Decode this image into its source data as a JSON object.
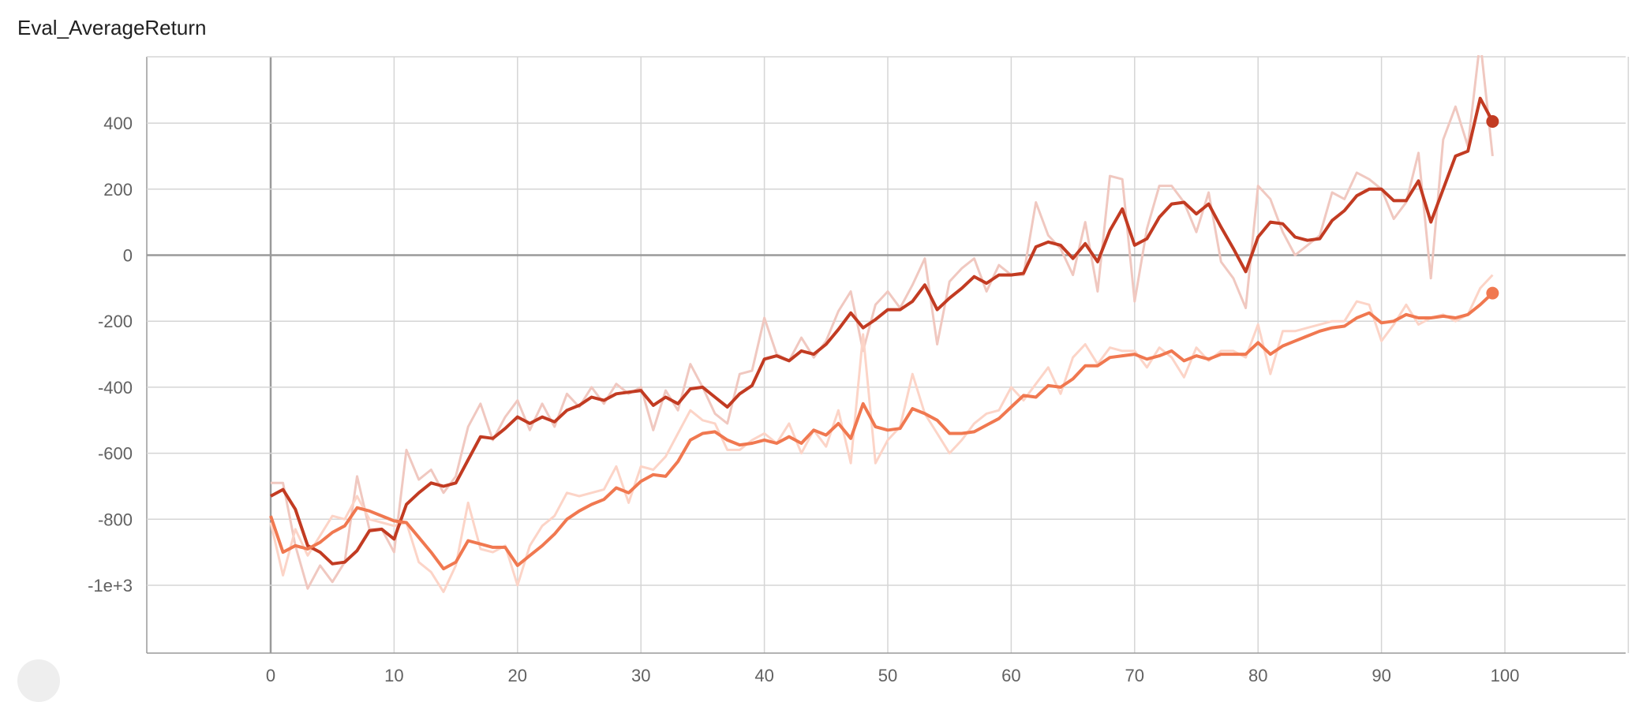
{
  "chart_data": {
    "type": "line",
    "title": "Eval_AverageReturn",
    "xlabel": "",
    "ylabel": "",
    "xlim": [
      -10,
      110
    ],
    "ylim": [
      -1200,
      600
    ],
    "x_ticks": [
      0,
      10,
      20,
      30,
      40,
      50,
      60,
      70,
      80,
      90,
      100
    ],
    "x_tick_labels": [
      "0",
      "10",
      "20",
      "30",
      "40",
      "50",
      "60",
      "70",
      "80",
      "90",
      "100"
    ],
    "y_ticks": [
      400,
      200,
      0,
      -200,
      -400,
      -600,
      -800,
      -1000
    ],
    "y_tick_labels": [
      "400",
      "200",
      "0",
      "-200",
      "-400",
      "-600",
      "-800",
      "-1e+3"
    ],
    "grid": true,
    "legend": "none",
    "smoothed": true,
    "series": [
      {
        "color": "#c23b22",
        "raw_color": "#f0c8c0",
        "x": [
          0,
          1,
          2,
          3,
          4,
          5,
          6,
          7,
          8,
          9,
          10,
          11,
          12,
          13,
          14,
          15,
          16,
          17,
          18,
          19,
          20,
          21,
          22,
          23,
          24,
          25,
          26,
          27,
          28,
          29,
          30,
          31,
          32,
          33,
          34,
          35,
          36,
          37,
          38,
          39,
          40,
          41,
          42,
          43,
          44,
          45,
          46,
          47,
          48,
          49,
          50,
          51,
          52,
          53,
          54,
          55,
          56,
          57,
          58,
          59,
          60,
          61,
          62,
          63,
          64,
          65,
          66,
          67,
          68,
          69,
          70,
          71,
          72,
          73,
          74,
          75,
          76,
          77,
          78,
          79,
          80,
          81,
          82,
          83,
          84,
          85,
          86,
          87,
          88,
          89,
          90,
          91,
          92,
          93,
          94,
          95,
          96,
          97,
          98,
          99
        ],
        "raw": [
          -690,
          -690,
          -880,
          -1010,
          -940,
          -990,
          -930,
          -670,
          -830,
          -830,
          -900,
          -590,
          -680,
          -650,
          -720,
          -670,
          -520,
          -450,
          -560,
          -490,
          -440,
          -530,
          -450,
          -520,
          -420,
          -460,
          -400,
          -450,
          -390,
          -420,
          -400,
          -530,
          -410,
          -470,
          -330,
          -400,
          -480,
          -510,
          -360,
          -350,
          -190,
          -300,
          -320,
          -250,
          -310,
          -260,
          -170,
          -110,
          -290,
          -150,
          -110,
          -160,
          -90,
          -10,
          -270,
          -80,
          -40,
          -10,
          -110,
          -30,
          -60,
          -60,
          160,
          60,
          20,
          -60,
          100,
          -110,
          240,
          230,
          -140,
          80,
          210,
          210,
          160,
          70,
          190,
          -20,
          -70,
          -160,
          210,
          170,
          70,
          0,
          30,
          60,
          190,
          170,
          250,
          230,
          200,
          110,
          160,
          310,
          -70,
          350,
          450,
          330,
          650,
          300
        ],
        "smoothed": [
          -730,
          -710,
          -770,
          -880,
          -900,
          -935,
          -930,
          -895,
          -835,
          -830,
          -860,
          -755,
          -720,
          -690,
          -700,
          -690,
          -620,
          -550,
          -555,
          -525,
          -490,
          -510,
          -490,
          -505,
          -470,
          -455,
          -430,
          -440,
          -420,
          -415,
          -410,
          -455,
          -430,
          -450,
          -405,
          -400,
          -430,
          -460,
          -420,
          -395,
          -315,
          -305,
          -320,
          -290,
          -300,
          -270,
          -225,
          -175,
          -220,
          -195,
          -165,
          -165,
          -140,
          -90,
          -165,
          -130,
          -100,
          -65,
          -85,
          -60,
          -60,
          -55,
          25,
          40,
          30,
          -10,
          35,
          -20,
          75,
          140,
          30,
          50,
          115,
          155,
          160,
          125,
          155,
          85,
          20,
          -50,
          55,
          100,
          95,
          55,
          45,
          50,
          105,
          135,
          180,
          200,
          200,
          165,
          165,
          225,
          100,
          200,
          300,
          315,
          475,
          405
        ]
      },
      {
        "color": "#f07850",
        "raw_color": "#fcd4c7",
        "x": [
          0,
          1,
          2,
          3,
          4,
          5,
          6,
          7,
          8,
          9,
          10,
          11,
          12,
          13,
          14,
          15,
          16,
          17,
          18,
          19,
          20,
          21,
          22,
          23,
          24,
          25,
          26,
          27,
          28,
          29,
          30,
          31,
          32,
          33,
          34,
          35,
          36,
          37,
          38,
          39,
          40,
          41,
          42,
          43,
          44,
          45,
          46,
          47,
          48,
          49,
          50,
          51,
          52,
          53,
          54,
          55,
          56,
          57,
          58,
          59,
          60,
          61,
          62,
          63,
          64,
          65,
          66,
          67,
          68,
          69,
          70,
          71,
          72,
          73,
          74,
          75,
          76,
          77,
          78,
          79,
          80,
          81,
          82,
          83,
          84,
          85,
          86,
          87,
          88,
          89,
          90,
          91,
          92,
          93,
          94,
          95,
          96,
          97,
          98,
          99
        ],
        "raw": [
          -810,
          -970,
          -830,
          -910,
          -850,
          -790,
          -800,
          -730,
          -800,
          -810,
          -820,
          -810,
          -930,
          -960,
          -1020,
          -940,
          -750,
          -890,
          -900,
          -880,
          -1000,
          -880,
          -820,
          -790,
          -720,
          -730,
          -720,
          -710,
          -640,
          -750,
          -640,
          -650,
          -610,
          -540,
          -470,
          -500,
          -510,
          -590,
          -590,
          -560,
          -540,
          -570,
          -510,
          -600,
          -530,
          -580,
          -470,
          -630,
          -240,
          -630,
          -560,
          -520,
          -360,
          -480,
          -540,
          -600,
          -560,
          -510,
          -480,
          -470,
          -400,
          -440,
          -390,
          -340,
          -420,
          -310,
          -270,
          -330,
          -280,
          -290,
          -290,
          -340,
          -280,
          -310,
          -370,
          -280,
          -320,
          -290,
          -290,
          -310,
          -210,
          -360,
          -230,
          -230,
          -220,
          -210,
          -200,
          -200,
          -140,
          -150,
          -260,
          -210,
          -150,
          -210,
          -190,
          -180,
          -200,
          -180,
          -100,
          -60
        ],
        "smoothed": [
          -790,
          -900,
          -880,
          -890,
          -870,
          -840,
          -820,
          -765,
          -775,
          -790,
          -805,
          -810,
          -855,
          -900,
          -950,
          -930,
          -865,
          -875,
          -885,
          -885,
          -940,
          -910,
          -880,
          -845,
          -800,
          -775,
          -755,
          -740,
          -705,
          -720,
          -685,
          -665,
          -670,
          -625,
          -560,
          -540,
          -535,
          -560,
          -575,
          -570,
          -560,
          -570,
          -550,
          -570,
          -530,
          -545,
          -510,
          -555,
          -450,
          -520,
          -530,
          -525,
          -465,
          -480,
          -500,
          -540,
          -540,
          -535,
          -515,
          -495,
          -460,
          -425,
          -430,
          -395,
          -400,
          -375,
          -335,
          -335,
          -310,
          -305,
          -300,
          -315,
          -305,
          -290,
          -320,
          -305,
          -315,
          -300,
          -300,
          -300,
          -265,
          -300,
          -275,
          -260,
          -245,
          -230,
          -220,
          -215,
          -190,
          -175,
          -205,
          -200,
          -180,
          -190,
          -190,
          -185,
          -190,
          -180,
          -150,
          -115
        ]
      }
    ]
  }
}
